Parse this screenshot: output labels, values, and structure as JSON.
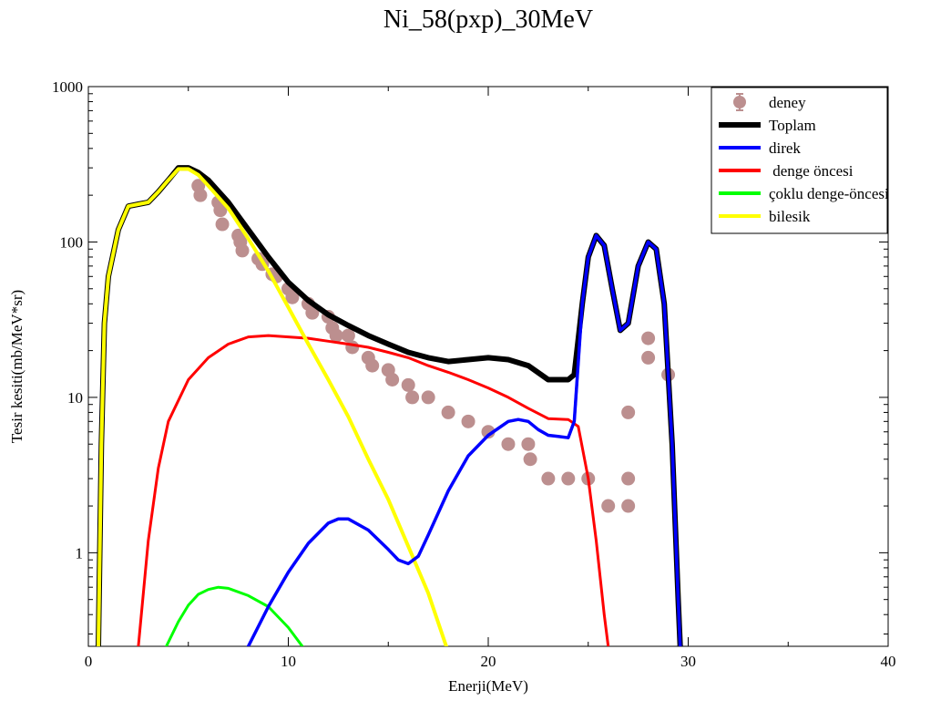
{
  "chart_data": {
    "type": "line",
    "title": "Ni_58(pxp)_30MeV",
    "xlabel": "Enerji(MeV)",
    "ylabel": "Tesir kesiti(mb/MeV*sr)",
    "xlim": [
      0,
      40
    ],
    "ylim": [
      0.25,
      1000
    ],
    "yscale": "log",
    "grid": false,
    "legend_position": "top-right",
    "x_ticks": [
      {
        "value": 0,
        "label": "0"
      },
      {
        "value": 10,
        "label": "10"
      },
      {
        "value": 20,
        "label": "20"
      },
      {
        "value": 30,
        "label": "30"
      },
      {
        "value": 40,
        "label": "40"
      }
    ],
    "y_ticks": [
      {
        "value": 1,
        "label": "1"
      },
      {
        "value": 10,
        "label": "10"
      },
      {
        "value": 100,
        "label": "100"
      },
      {
        "value": 1000,
        "label": "1000"
      }
    ],
    "series": [
      {
        "name": "deney",
        "kind": "scatter",
        "color": "#bc8f8f",
        "points": [
          [
            5.5,
            230
          ],
          [
            5.6,
            200
          ],
          [
            6.5,
            180
          ],
          [
            6.6,
            160
          ],
          [
            6.7,
            130
          ],
          [
            7.5,
            110
          ],
          [
            7.6,
            100
          ],
          [
            7.7,
            88
          ],
          [
            8.5,
            78
          ],
          [
            8.7,
            72
          ],
          [
            9.2,
            62
          ],
          [
            9.4,
            60
          ],
          [
            10,
            50
          ],
          [
            10.2,
            44
          ],
          [
            11,
            40
          ],
          [
            11.2,
            35
          ],
          [
            12,
            33
          ],
          [
            12.2,
            28
          ],
          [
            12.4,
            25
          ],
          [
            13,
            25
          ],
          [
            13.2,
            21
          ],
          [
            14,
            18
          ],
          [
            14.2,
            16
          ],
          [
            15,
            15
          ],
          [
            15.2,
            13
          ],
          [
            16,
            12
          ],
          [
            16.2,
            10
          ],
          [
            17,
            10
          ],
          [
            18,
            8
          ],
          [
            19,
            7
          ],
          [
            20,
            6
          ],
          [
            21,
            5
          ],
          [
            22,
            5
          ],
          [
            22.1,
            4
          ],
          [
            23,
            3
          ],
          [
            24,
            3
          ],
          [
            25,
            3
          ],
          [
            26,
            2
          ],
          [
            27,
            2
          ],
          [
            27,
            3
          ],
          [
            27,
            8
          ],
          [
            28,
            18
          ],
          [
            28,
            24
          ],
          [
            29,
            14
          ]
        ]
      },
      {
        "name": "Toplam",
        "kind": "line",
        "color": "#000000",
        "points": [
          [
            0.5,
            0.25
          ],
          [
            0.65,
            5
          ],
          [
            0.8,
            30
          ],
          [
            1.0,
            60
          ],
          [
            1.5,
            120
          ],
          [
            2,
            170
          ],
          [
            2.5,
            175
          ],
          [
            3,
            180
          ],
          [
            3.5,
            210
          ],
          [
            4,
            250
          ],
          [
            4.5,
            300
          ],
          [
            5,
            300
          ],
          [
            5.5,
            280
          ],
          [
            6,
            250
          ],
          [
            7,
            180
          ],
          [
            8,
            120
          ],
          [
            9,
            80
          ],
          [
            10,
            55
          ],
          [
            11,
            42
          ],
          [
            12,
            34
          ],
          [
            13,
            29
          ],
          [
            14,
            25
          ],
          [
            15,
            22
          ],
          [
            16,
            19.5
          ],
          [
            17,
            18
          ],
          [
            18,
            17
          ],
          [
            19,
            17.5
          ],
          [
            20,
            18
          ],
          [
            21,
            17.5
          ],
          [
            22,
            16
          ],
          [
            23,
            13
          ],
          [
            24,
            13
          ],
          [
            24.3,
            14
          ],
          [
            24.7,
            40
          ],
          [
            25,
            80
          ],
          [
            25.4,
            110
          ],
          [
            25.8,
            95
          ],
          [
            26.2,
            50
          ],
          [
            26.6,
            27
          ],
          [
            27,
            30
          ],
          [
            27.5,
            70
          ],
          [
            28,
            100
          ],
          [
            28.4,
            90
          ],
          [
            28.8,
            40
          ],
          [
            29.2,
            5
          ],
          [
            29.5,
            0.5
          ],
          [
            29.6,
            0.25
          ]
        ]
      },
      {
        "name": "direk",
        "kind": "line",
        "color": "#0000ff",
        "points": [
          [
            8,
            0.25
          ],
          [
            9,
            0.45
          ],
          [
            10,
            0.75
          ],
          [
            11,
            1.15
          ],
          [
            12,
            1.55
          ],
          [
            12.5,
            1.65
          ],
          [
            13,
            1.65
          ],
          [
            14,
            1.4
          ],
          [
            15,
            1.05
          ],
          [
            15.5,
            0.9
          ],
          [
            16,
            0.85
          ],
          [
            16.5,
            0.95
          ],
          [
            17,
            1.3
          ],
          [
            18,
            2.5
          ],
          [
            19,
            4.2
          ],
          [
            20,
            5.7
          ],
          [
            21,
            7
          ],
          [
            21.5,
            7.2
          ],
          [
            22,
            7
          ],
          [
            22.5,
            6.2
          ],
          [
            23,
            5.7
          ],
          [
            23.5,
            5.6
          ],
          [
            24,
            5.5
          ],
          [
            24.3,
            7
          ],
          [
            24.7,
            40
          ],
          [
            25,
            80
          ],
          [
            25.4,
            110
          ],
          [
            25.8,
            95
          ],
          [
            26.2,
            50
          ],
          [
            26.6,
            27
          ],
          [
            27,
            30
          ],
          [
            27.5,
            70
          ],
          [
            28,
            100
          ],
          [
            28.4,
            90
          ],
          [
            28.8,
            40
          ],
          [
            29.2,
            5
          ],
          [
            29.5,
            0.5
          ],
          [
            29.6,
            0.25
          ]
        ]
      },
      {
        "name": " denge öncesi",
        "kind": "line",
        "color": "#ff0000",
        "points": [
          [
            2.5,
            0.25
          ],
          [
            3,
            1.2
          ],
          [
            3.5,
            3.5
          ],
          [
            4,
            7
          ],
          [
            5,
            13
          ],
          [
            6,
            18
          ],
          [
            7,
            22
          ],
          [
            8,
            24.5
          ],
          [
            9,
            25
          ],
          [
            10,
            24.5
          ],
          [
            11,
            24
          ],
          [
            12,
            23
          ],
          [
            13,
            22
          ],
          [
            14,
            21
          ],
          [
            15,
            19.5
          ],
          [
            16,
            18
          ],
          [
            17,
            16
          ],
          [
            18,
            14.5
          ],
          [
            19,
            13
          ],
          [
            20,
            11.5
          ],
          [
            21,
            10
          ],
          [
            22,
            8.5
          ],
          [
            23,
            7.3
          ],
          [
            24,
            7.2
          ],
          [
            24.5,
            6.5
          ],
          [
            25,
            3
          ],
          [
            25.4,
            1.2
          ],
          [
            25.8,
            0.4
          ],
          [
            26,
            0.25
          ]
        ]
      },
      {
        "name": "çoklu denge-öncesi",
        "kind": "line",
        "color": "#00ff00",
        "points": [
          [
            3.9,
            0.25
          ],
          [
            4.5,
            0.36
          ],
          [
            5,
            0.46
          ],
          [
            5.5,
            0.54
          ],
          [
            6,
            0.58
          ],
          [
            6.5,
            0.6
          ],
          [
            7,
            0.59
          ],
          [
            8,
            0.53
          ],
          [
            9,
            0.45
          ],
          [
            10,
            0.33
          ],
          [
            10.7,
            0.25
          ]
        ]
      },
      {
        "name": "bilesik",
        "kind": "line",
        "color": "#ffff00",
        "points": [
          [
            0.5,
            0.25
          ],
          [
            0.65,
            5
          ],
          [
            0.8,
            30
          ],
          [
            1.0,
            60
          ],
          [
            1.5,
            120
          ],
          [
            2,
            170
          ],
          [
            2.5,
            175
          ],
          [
            3,
            180
          ],
          [
            3.5,
            210
          ],
          [
            4,
            250
          ],
          [
            4.5,
            295
          ],
          [
            5,
            295
          ],
          [
            5.5,
            270
          ],
          [
            6,
            230
          ],
          [
            7,
            165
          ],
          [
            8,
            105
          ],
          [
            9,
            65
          ],
          [
            10,
            38
          ],
          [
            11,
            22
          ],
          [
            12,
            13
          ],
          [
            13,
            7.5
          ],
          [
            14,
            4
          ],
          [
            15,
            2.2
          ],
          [
            16,
            1.1
          ],
          [
            17,
            0.55
          ],
          [
            17.9,
            0.25
          ]
        ]
      }
    ]
  }
}
